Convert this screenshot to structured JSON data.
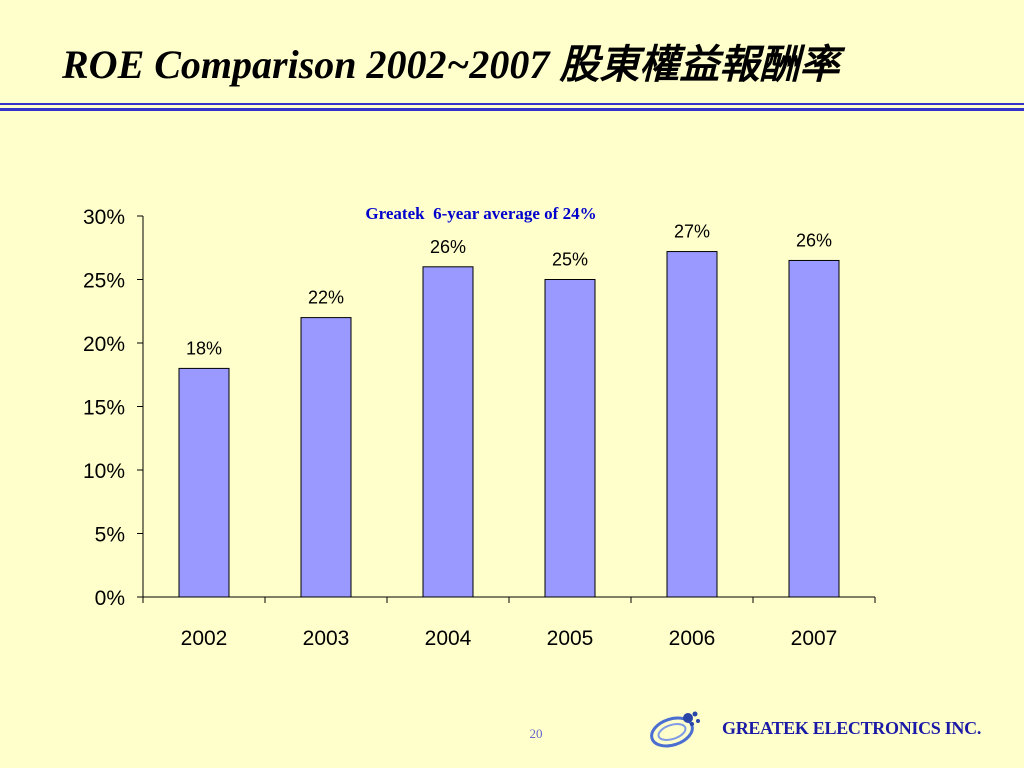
{
  "slide": {
    "title": "ROE Comparison 2002~2007 股東權益報酬率",
    "page_number": "20",
    "company_name": "GREATEK ELECTRONICS INC",
    "company_suffix": "."
  },
  "colors": {
    "background": "#ffffcc",
    "bar_fill": "#9999ff",
    "bar_border": "#000000",
    "rule": "#3333cc",
    "annotation": "#0000cc",
    "company": "#1a1aa6"
  },
  "chart_data": {
    "type": "bar",
    "title": "",
    "annotation": "Greatek  6-year average of 24%",
    "xlabel": "",
    "ylabel": "",
    "categories": [
      "2002",
      "2003",
      "2004",
      "2005",
      "2006",
      "2007"
    ],
    "values": [
      18,
      22,
      26,
      25,
      27.2,
      26.5
    ],
    "data_labels": [
      "18%",
      "22%",
      "26%",
      "25%",
      "27%",
      "26%"
    ],
    "ylim": [
      0,
      30
    ],
    "yticks": [
      0,
      5,
      10,
      15,
      20,
      25,
      30
    ],
    "ytick_labels": [
      "0%",
      "5%",
      "10%",
      "15%",
      "20%",
      "25%",
      "30%"
    ],
    "grid": false,
    "legend": "none"
  }
}
